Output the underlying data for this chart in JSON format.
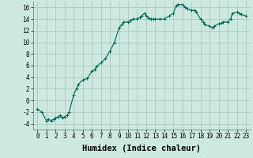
{
  "title": "",
  "xlabel": "Humidex (Indice chaleur)",
  "ylabel": "",
  "background_color": "#cce8e0",
  "grid_color": "#aaccbb",
  "line_color": "#006655",
  "marker_color": "#006655",
  "xlim": [
    -0.5,
    23.5
  ],
  "ylim": [
    -5,
    17
  ],
  "x": [
    0,
    0.5,
    1,
    1.2,
    1.5,
    1.8,
    2,
    2.3,
    2.5,
    2.8,
    3,
    3.3,
    3.5,
    4,
    4.3,
    4.5,
    5,
    5.5,
    6,
    6.3,
    6.5,
    7,
    7.5,
    8,
    8.5,
    9,
    9.3,
    9.5,
    10,
    10.3,
    10.5,
    11,
    11.3,
    11.5,
    11.8,
    12,
    12.3,
    12.5,
    12.8,
    13,
    13.5,
    14,
    14.5,
    15,
    15.3,
    15.5,
    16,
    16.3,
    16.5,
    17,
    17.3,
    17.5,
    18,
    18.3,
    18.5,
    19,
    19.3,
    19.5,
    20,
    20.3,
    20.5,
    21,
    21.3,
    21.5,
    22,
    22.3,
    22.5,
    23
  ],
  "y": [
    -1.5,
    -2.0,
    -3.5,
    -3.2,
    -3.5,
    -3.2,
    -3.0,
    -2.8,
    -2.5,
    -3.0,
    -2.8,
    -2.5,
    -2.0,
    1.0,
    2.0,
    2.8,
    3.5,
    3.8,
    5.0,
    5.3,
    5.8,
    6.5,
    7.2,
    8.5,
    10.0,
    12.5,
    13.0,
    13.5,
    13.5,
    13.8,
    14.0,
    14.0,
    14.3,
    14.5,
    15.0,
    14.5,
    14.2,
    14.0,
    14.0,
    14.0,
    14.0,
    14.0,
    14.5,
    15.0,
    16.3,
    16.5,
    16.5,
    16.0,
    15.8,
    15.5,
    15.5,
    15.2,
    14.0,
    13.5,
    13.0,
    12.8,
    12.5,
    12.8,
    13.2,
    13.3,
    13.5,
    13.5,
    14.0,
    15.0,
    15.2,
    15.0,
    14.8,
    14.5
  ],
  "xticks": [
    0,
    1,
    2,
    3,
    4,
    5,
    6,
    7,
    8,
    9,
    10,
    11,
    12,
    13,
    14,
    15,
    16,
    17,
    18,
    19,
    20,
    21,
    22,
    23
  ],
  "yticks": [
    -4,
    -2,
    0,
    2,
    4,
    6,
    8,
    10,
    12,
    14,
    16
  ],
  "tick_fontsize": 5.5,
  "label_fontsize": 7.5
}
